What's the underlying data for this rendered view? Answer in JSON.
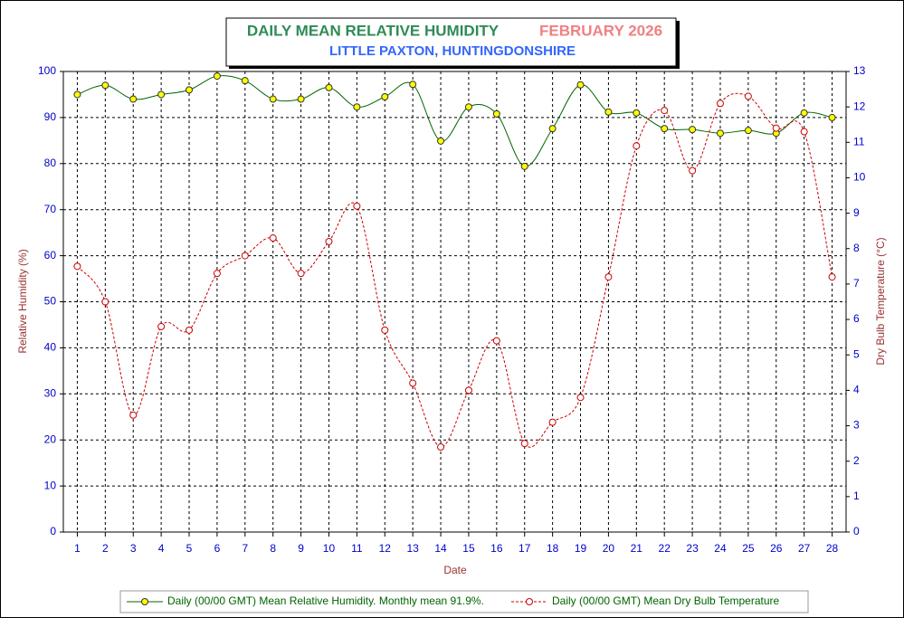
{
  "chart_data": {
    "type": "line",
    "title": "DAILY MEAN RELATIVE HUMIDITY",
    "title_month": "FEBRUARY 2026",
    "subtitle": "LITTLE PAXTON, HUNTINGDONSHIRE",
    "x_label": "Date",
    "y_label": "Relative Humidity (%)",
    "y2_label": "Dry Bulb Temperature (°C)",
    "categories": [
      "1",
      "2",
      "3",
      "4",
      "5",
      "6",
      "7",
      "8",
      "9",
      "10",
      "11",
      "12",
      "13",
      "14",
      "15",
      "16",
      "17",
      "18",
      "19",
      "20",
      "21",
      "22",
      "23",
      "24",
      "25",
      "26",
      "27",
      "28"
    ],
    "series": [
      {
        "name": "Daily (00/00 GMT) Mean Relative Humidity. Monthly mean 91.9%.",
        "color": "#006400",
        "values": [
          95,
          97,
          94,
          95,
          96,
          99,
          98,
          94,
          94,
          96.5,
          92.3,
          94.5,
          97.2,
          84.9,
          92.3,
          90.8,
          79.4,
          87.6,
          97.1,
          91.2,
          91,
          87.6,
          87.4,
          86.6,
          87.2,
          86.6,
          91,
          90
        ]
      },
      {
        "name": "Daily (00/00 GMT) Mean Dry Bulb Temperature",
        "color": "#cc0000",
        "axis": "y2",
        "values": [
          7.5,
          6.5,
          3.3,
          5.8,
          5.7,
          7.3,
          7.8,
          8.3,
          7.3,
          8.2,
          9.2,
          5.7,
          4.2,
          2.4,
          4.0,
          5.4,
          2.5,
          3.1,
          3.8,
          7.2,
          10.9,
          11.9,
          10.2,
          12.1,
          12.3,
          11.4,
          11.3,
          7.2
        ]
      }
    ],
    "ylim": [
      0,
      100
    ],
    "yticks": [
      0,
      10,
      20,
      30,
      40,
      50,
      60,
      70,
      80,
      90,
      100
    ],
    "y2lim": [
      0,
      13
    ],
    "y2ticks": [
      0,
      1,
      2,
      3,
      4,
      5,
      6,
      7,
      8,
      9,
      10,
      11,
      12,
      13
    ],
    "grid": true
  }
}
